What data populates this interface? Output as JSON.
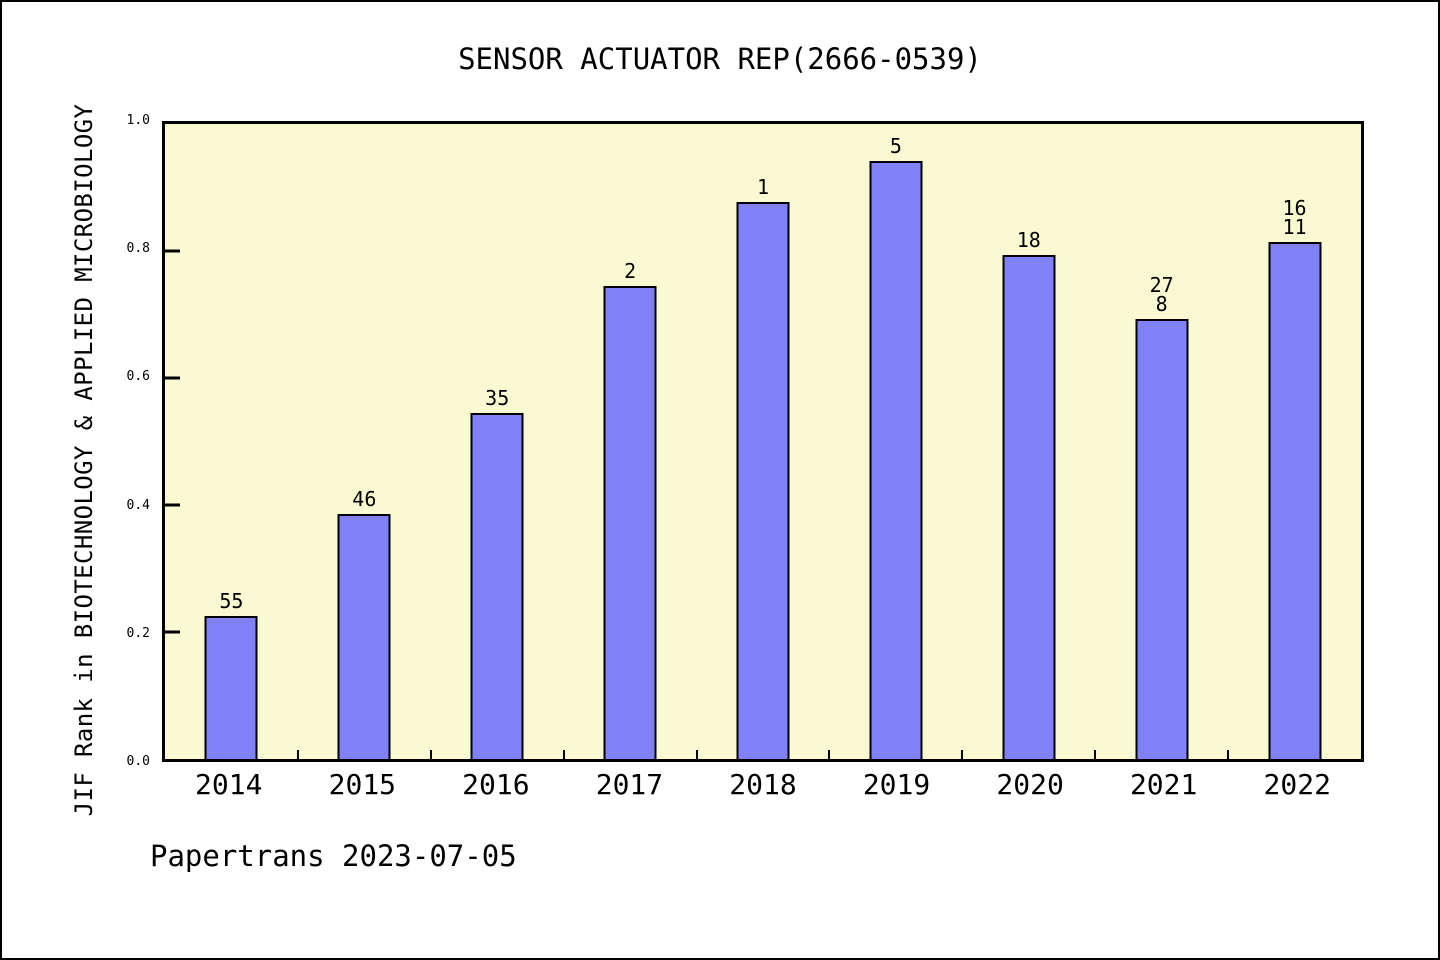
{
  "footer": {
    "text": "Papertrans 2023-07-05"
  },
  "chart_data": {
    "type": "bar",
    "title": "SENSOR ACTUATOR REP(2666-0539)",
    "xlabel": "",
    "ylabel": "JIF Rank in BIOTECHNOLOGY & APPLIED MICROBIOLOGY",
    "categories": [
      "2014",
      "2015",
      "2016",
      "2017",
      "2018",
      "2019",
      "2020",
      "2021",
      "2022"
    ],
    "values": [
      0.226,
      0.386,
      0.545,
      0.745,
      0.877,
      0.942,
      0.793,
      0.693,
      0.814
    ],
    "bar_labels": [
      [
        "55"
      ],
      [
        "46"
      ],
      [
        "35"
      ],
      [
        "2"
      ],
      [
        "1"
      ],
      [
        "5"
      ],
      [
        "18"
      ],
      [
        "27",
        "8"
      ],
      [
        "16",
        "11"
      ]
    ],
    "yticks": [
      0.0,
      0.2,
      0.4,
      0.6,
      0.8,
      1.0
    ],
    "ylim": [
      0,
      1
    ],
    "grid": false,
    "legend": null,
    "colors": {
      "bar_fill": "#8181F7",
      "bar_edge": "#000000",
      "plot_bg": "#FAFAD2",
      "axis": "#000000",
      "text": "#000000"
    }
  }
}
